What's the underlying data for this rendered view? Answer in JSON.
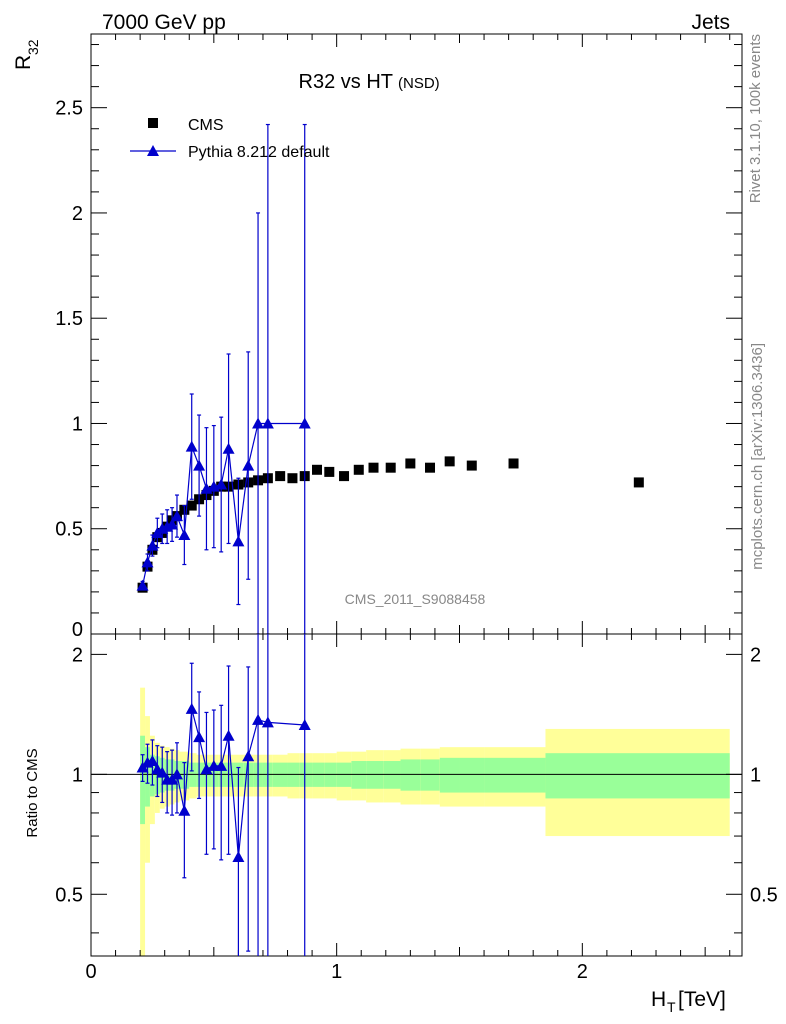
{
  "header": {
    "left": "7000 GeV pp",
    "right": "Jets"
  },
  "side_text": {
    "rivet": "Rivet 3.1.10,  100k events",
    "mcplots": "mcplots.cern.ch [arXiv:1306.3436]"
  },
  "colors": {
    "cms": "#000000",
    "pythia": "#0000cc",
    "band_inner": "#99ff99",
    "band_outer": "#ffff99"
  },
  "chart_data": [
    {
      "type": "scatter",
      "panel": "main",
      "title": "R32 vs HT",
      "title_suffix": "(NSD)",
      "ylabel": "R",
      "ylabel_sub": "32",
      "watermark": "CMS_2011_S9088458",
      "xlim": [
        0,
        2.65
      ],
      "ylim": [
        0,
        2.85
      ],
      "yticks": [
        0,
        0.5,
        1,
        1.5,
        2,
        2.5
      ],
      "ytick_labels": [
        "0",
        "0.5",
        "1",
        "1.5",
        "2",
        "2.5"
      ],
      "legend_position": "top-left",
      "series": [
        {
          "name": "CMS",
          "marker": "square",
          "x": [
            0.21,
            0.23,
            0.25,
            0.27,
            0.29,
            0.31,
            0.33,
            0.35,
            0.38,
            0.41,
            0.44,
            0.47,
            0.5,
            0.53,
            0.56,
            0.6,
            0.64,
            0.68,
            0.72,
            0.77,
            0.82,
            0.87,
            0.92,
            0.97,
            1.03,
            1.09,
            1.15,
            1.22,
            1.3,
            1.38,
            1.46,
            1.55,
            1.72,
            2.23
          ],
          "y": [
            0.22,
            0.32,
            0.4,
            0.46,
            0.48,
            0.51,
            0.54,
            0.56,
            0.59,
            0.61,
            0.64,
            0.66,
            0.68,
            0.7,
            0.7,
            0.71,
            0.72,
            0.73,
            0.74,
            0.75,
            0.74,
            0.75,
            0.78,
            0.77,
            0.75,
            0.78,
            0.79,
            0.79,
            0.81,
            0.79,
            0.82,
            0.8,
            0.81,
            0.72
          ]
        },
        {
          "name": "Pythia 8.212 default",
          "marker": "triangle",
          "x": [
            0.21,
            0.23,
            0.25,
            0.27,
            0.29,
            0.31,
            0.33,
            0.35,
            0.38,
            0.41,
            0.44,
            0.47,
            0.5,
            0.53,
            0.56,
            0.6,
            0.64,
            0.68,
            0.72,
            0.87
          ],
          "y": [
            0.23,
            0.34,
            0.42,
            0.48,
            0.5,
            0.51,
            0.52,
            0.56,
            0.47,
            0.89,
            0.8,
            0.69,
            0.7,
            0.71,
            0.88,
            0.44,
            0.8,
            1.0,
            1.0,
            1.0
          ],
          "yerr": [
            0.02,
            0.04,
            0.05,
            0.07,
            0.07,
            0.08,
            0.08,
            0.1,
            0.14,
            0.25,
            0.24,
            0.29,
            0.29,
            0.32,
            0.45,
            0.3,
            0.54,
            1.0,
            1.42,
            1.42
          ]
        }
      ]
    },
    {
      "type": "scatter",
      "panel": "ratio",
      "xlabel": "H",
      "xlabel_sub": "T",
      "xlabel_unit": "[TeV]",
      "ylabel": "Ratio to CMS",
      "xlim": [
        0,
        2.65
      ],
      "ylim": [
        0.35,
        2.25
      ],
      "xticks": [
        0,
        1,
        2
      ],
      "xtick_labels": [
        "0",
        "1",
        "2"
      ],
      "yticks": [
        0.5,
        1,
        2
      ],
      "ytick_labels": [
        "0.5",
        "1",
        "2"
      ],
      "band": {
        "edges": [
          0.2,
          0.22,
          0.24,
          0.26,
          0.28,
          0.3,
          0.32,
          0.34,
          0.36,
          0.4,
          0.43,
          0.46,
          0.49,
          0.52,
          0.55,
          0.58,
          0.62,
          0.66,
          0.7,
          0.74,
          0.8,
          0.85,
          0.9,
          0.95,
          1.0,
          1.06,
          1.12,
          1.19,
          1.26,
          1.34,
          1.42,
          1.5,
          1.6,
          1.85,
          2.6
        ],
        "inner": [
          0.25,
          0.17,
          0.12,
          0.11,
          0.1,
          0.09,
          0.09,
          0.08,
          0.08,
          0.07,
          0.07,
          0.07,
          0.07,
          0.07,
          0.07,
          0.07,
          0.07,
          0.07,
          0.07,
          0.07,
          0.07,
          0.07,
          0.07,
          0.07,
          0.07,
          0.08,
          0.08,
          0.08,
          0.09,
          0.09,
          0.1,
          0.1,
          0.1,
          0.13
        ],
        "outer": [
          0.65,
          0.4,
          0.25,
          0.2,
          0.18,
          0.17,
          0.16,
          0.15,
          0.14,
          0.13,
          0.12,
          0.12,
          0.12,
          0.12,
          0.12,
          0.12,
          0.12,
          0.12,
          0.12,
          0.12,
          0.13,
          0.13,
          0.13,
          0.13,
          0.14,
          0.14,
          0.15,
          0.15,
          0.16,
          0.16,
          0.17,
          0.17,
          0.17,
          0.3
        ]
      },
      "series": [
        {
          "name": "Pythia 8.212 default",
          "marker": "triangle",
          "x": [
            0.21,
            0.23,
            0.25,
            0.27,
            0.29,
            0.31,
            0.33,
            0.35,
            0.38,
            0.41,
            0.44,
            0.47,
            0.5,
            0.53,
            0.56,
            0.6,
            0.64,
            0.68,
            0.72,
            0.87
          ],
          "y": [
            1.04,
            1.07,
            1.08,
            1.03,
            1.01,
            0.97,
            0.97,
            1.0,
            0.81,
            1.46,
            1.24,
            1.03,
            1.05,
            1.05,
            1.25,
            0.62,
            1.11,
            1.37,
            1.35,
            1.33
          ],
          "yerr": [
            0.08,
            0.12,
            0.14,
            0.15,
            0.16,
            0.17,
            0.18,
            0.2,
            0.26,
            0.44,
            0.37,
            0.4,
            0.4,
            0.44,
            0.62,
            0.42,
            0.75,
            1.35,
            1.95,
            1.95
          ]
        }
      ]
    }
  ]
}
